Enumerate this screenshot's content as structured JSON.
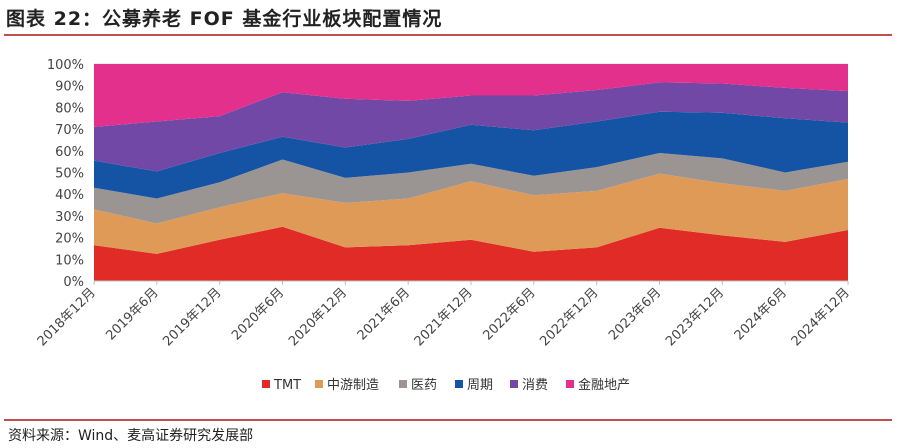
{
  "header": {
    "title": "图表 22：公募养老 FOF 基金行业板块配置情况"
  },
  "footer": {
    "source": "资料来源：Wind、麦高证券研究发展部"
  },
  "chart_data": {
    "type": "area",
    "stacked": true,
    "title": "图表 22：公募养老 FOF 基金行业板块配置情况",
    "xlabel": "",
    "ylabel": "",
    "ylim": [
      0,
      100
    ],
    "yticks": [
      "0%",
      "10%",
      "20%",
      "30%",
      "40%",
      "50%",
      "60%",
      "70%",
      "80%",
      "90%",
      "100%"
    ],
    "categories": [
      "2018年12月",
      "2019年6月",
      "2019年12月",
      "2020年6月",
      "2020年12月",
      "2021年6月",
      "2021年12月",
      "2022年6月",
      "2022年12月",
      "2023年6月",
      "2023年12月",
      "2024年6月",
      "2024年12月"
    ],
    "legend_position": "bottom",
    "series": [
      {
        "name": "TMT",
        "color": "#e02b26",
        "values": [
          16.5,
          12.5,
          19.0,
          25.0,
          15.5,
          16.5,
          19.0,
          13.5,
          15.5,
          24.5,
          21.0,
          18.0,
          23.5
        ]
      },
      {
        "name": "中游制造",
        "color": "#e09a58",
        "values": [
          16.5,
          14.0,
          15.0,
          15.5,
          20.5,
          21.5,
          27.0,
          26.0,
          26.0,
          25.0,
          24.0,
          23.5,
          23.5
        ]
      },
      {
        "name": "医药",
        "color": "#9a9593",
        "values": [
          10.0,
          11.5,
          11.5,
          15.5,
          11.5,
          12.0,
          8.0,
          9.0,
          11.0,
          9.5,
          11.5,
          8.5,
          8.0
        ]
      },
      {
        "name": "周期",
        "color": "#1553a5",
        "values": [
          12.5,
          12.5,
          13.5,
          10.5,
          14.0,
          15.5,
          18.0,
          21.0,
          21.0,
          19.0,
          21.0,
          25.0,
          18.0
        ]
      },
      {
        "name": "消费",
        "color": "#7248a6",
        "values": [
          15.5,
          23.0,
          17.0,
          20.5,
          22.5,
          17.5,
          13.5,
          16.0,
          14.5,
          13.5,
          13.5,
          14.0,
          14.5
        ]
      },
      {
        "name": "金融地产",
        "color": "#e2308c",
        "values": [
          29.0,
          26.5,
          24.0,
          13.0,
          16.0,
          17.0,
          14.5,
          14.5,
          12.0,
          8.5,
          9.0,
          11.0,
          12.5
        ]
      }
    ]
  }
}
